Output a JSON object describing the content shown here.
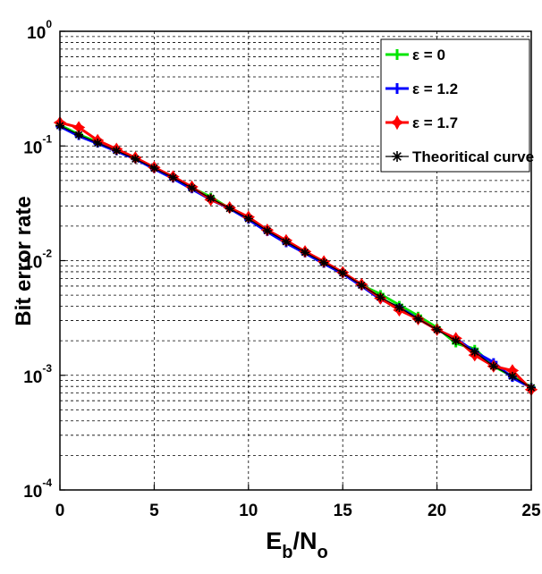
{
  "chart_data": {
    "type": "line",
    "title": "",
    "xlabel": {
      "main": "E",
      "sub1": "b",
      "mid": "/N",
      "sub2": "o"
    },
    "ylabel": "Bit error rate",
    "y_scale": "log",
    "xlim": [
      0,
      25
    ],
    "ylim": [
      0.0001,
      1
    ],
    "grid": true,
    "legend_position": "top-right",
    "x_ticks": [
      "0",
      "5",
      "10",
      "15",
      "20",
      "25"
    ],
    "y_ticks": [
      {
        "base": "10",
        "exp": "0",
        "value": 1
      },
      {
        "base": "10",
        "exp": "-1",
        "value": 0.1
      },
      {
        "base": "10",
        "exp": "-2",
        "value": 0.01
      },
      {
        "base": "10",
        "exp": "-3",
        "value": 0.001
      },
      {
        "base": "10",
        "exp": "-4",
        "value": 0.0001
      }
    ],
    "x": [
      0,
      1,
      2,
      3,
      4,
      5,
      6,
      7,
      8,
      9,
      10,
      11,
      12,
      13,
      14,
      15,
      16,
      17,
      18,
      19,
      20,
      21,
      22,
      23,
      24,
      25
    ],
    "series": [
      {
        "name": "ε = 0",
        "color": "#00e600",
        "values": [
          0.152,
          0.126,
          0.108,
          0.092,
          0.078,
          0.064,
          0.053,
          0.043,
          0.036,
          0.0285,
          0.0235,
          0.0182,
          0.0146,
          0.0118,
          0.0096,
          0.0078,
          0.0061,
          0.0051,
          0.0041,
          0.0033,
          0.0026,
          0.0019,
          0.0017,
          0.0012,
          0.00098,
          0.00079
        ]
      },
      {
        "name": "ε = 1.2",
        "color": "#0000ff",
        "values": [
          0.148,
          0.122,
          0.105,
          0.09,
          0.077,
          0.063,
          0.052,
          0.042,
          0.034,
          0.0285,
          0.0228,
          0.0178,
          0.0142,
          0.0116,
          0.0094,
          0.0077,
          0.006,
          0.0046,
          0.0039,
          0.0031,
          0.0025,
          0.0021,
          0.0016,
          0.0013,
          0.00095,
          0.00078
        ]
      },
      {
        "name": "ε = 1.7",
        "color": "#ff0000",
        "values": [
          0.16,
          0.145,
          0.112,
          0.094,
          0.079,
          0.065,
          0.054,
          0.044,
          0.034,
          0.029,
          0.024,
          0.0185,
          0.015,
          0.012,
          0.0098,
          0.0079,
          0.0062,
          0.0047,
          0.0037,
          0.0031,
          0.0025,
          0.0021,
          0.0015,
          0.0012,
          0.0011,
          0.00075
        ]
      },
      {
        "name": "Theoritical curve",
        "color": "#000000",
        "values": [
          0.15,
          0.125,
          0.106,
          0.091,
          0.077,
          0.064,
          0.053,
          0.043,
          0.035,
          0.0285,
          0.0232,
          0.0182,
          0.0146,
          0.0118,
          0.0096,
          0.0078,
          0.0061,
          0.0048,
          0.0039,
          0.0031,
          0.0025,
          0.002,
          0.0016,
          0.0012,
          0.00098,
          0.00078
        ]
      }
    ]
  }
}
